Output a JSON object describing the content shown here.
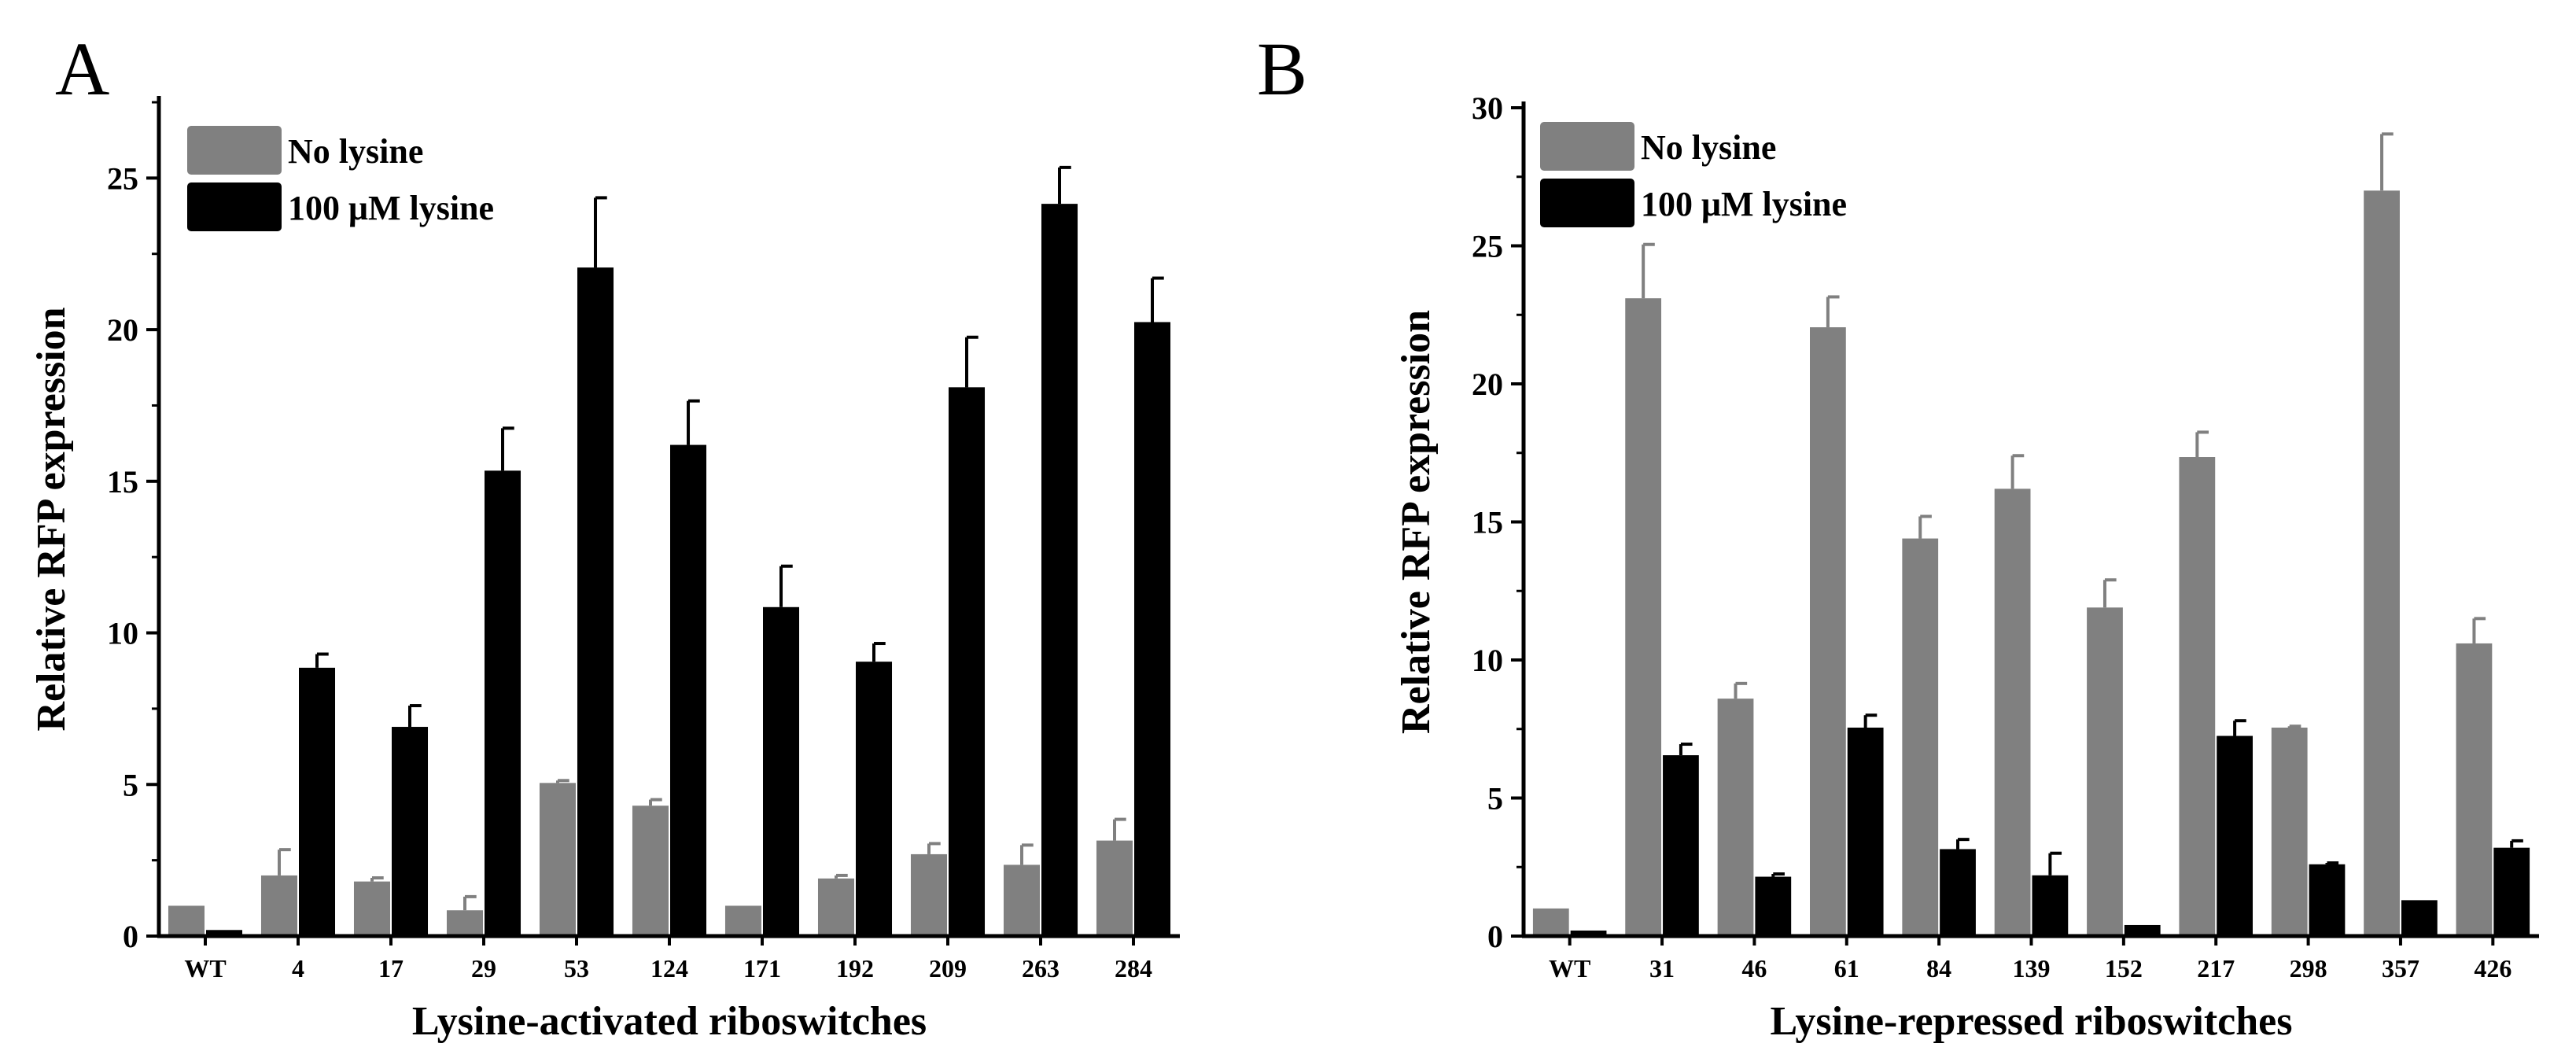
{
  "chart_data": [
    {
      "type": "bar",
      "panel": "A",
      "xlabel": "Lysine-activated riboswitches",
      "ylabel": "Relative RFP expression",
      "ylim": [
        0,
        27.5
      ],
      "yticks": [
        0,
        5,
        10,
        15,
        20,
        25
      ],
      "categories": [
        "WT",
        "4",
        "17",
        "29",
        "53",
        "124",
        "171",
        "192",
        "209",
        "263",
        "284"
      ],
      "series": [
        {
          "name": "No lysine",
          "color": "#808080",
          "values": [
            1.0,
            2.0,
            1.8,
            0.85,
            5.05,
            4.3,
            1.0,
            1.9,
            2.7,
            2.35,
            3.15
          ],
          "errors": [
            0.0,
            0.85,
            0.12,
            0.45,
            0.08,
            0.2,
            0.0,
            0.1,
            0.35,
            0.65,
            0.7
          ]
        },
        {
          "name": "100 μM lysine",
          "color": "#000000",
          "values": [
            0.2,
            8.85,
            6.9,
            15.35,
            22.05,
            16.2,
            10.85,
            9.05,
            18.1,
            24.15,
            20.25
          ],
          "errors": [
            0.0,
            0.45,
            0.7,
            1.4,
            2.3,
            1.45,
            1.35,
            0.6,
            1.65,
            1.2,
            1.45
          ]
        }
      ]
    },
    {
      "type": "bar",
      "panel": "B",
      "xlabel": "Lysine-repressed riboswitches",
      "ylabel": "Relative RFP expression",
      "ylim": [
        0,
        30
      ],
      "yticks": [
        0,
        5,
        10,
        15,
        20,
        25,
        30
      ],
      "categories": [
        "WT",
        "31",
        "46",
        "61",
        "84",
        "139",
        "152",
        "217",
        "298",
        "357",
        "426"
      ],
      "series": [
        {
          "name": "No lysine",
          "color": "#808080",
          "values": [
            1.0,
            23.1,
            8.6,
            22.05,
            14.4,
            16.2,
            11.9,
            17.35,
            7.55,
            27.0,
            10.6
          ],
          "errors": [
            0.0,
            1.95,
            0.55,
            1.1,
            0.8,
            1.2,
            1.0,
            0.9,
            0.05,
            2.05,
            0.9
          ]
        },
        {
          "name": "100 μM lysine",
          "color": "#000000",
          "values": [
            0.2,
            6.55,
            2.15,
            7.55,
            3.15,
            2.2,
            0.4,
            7.25,
            2.6,
            1.3,
            3.2
          ],
          "errors": [
            0.0,
            0.4,
            0.1,
            0.45,
            0.35,
            0.8,
            0.0,
            0.55,
            0.05,
            0.0,
            0.25
          ]
        }
      ]
    }
  ]
}
